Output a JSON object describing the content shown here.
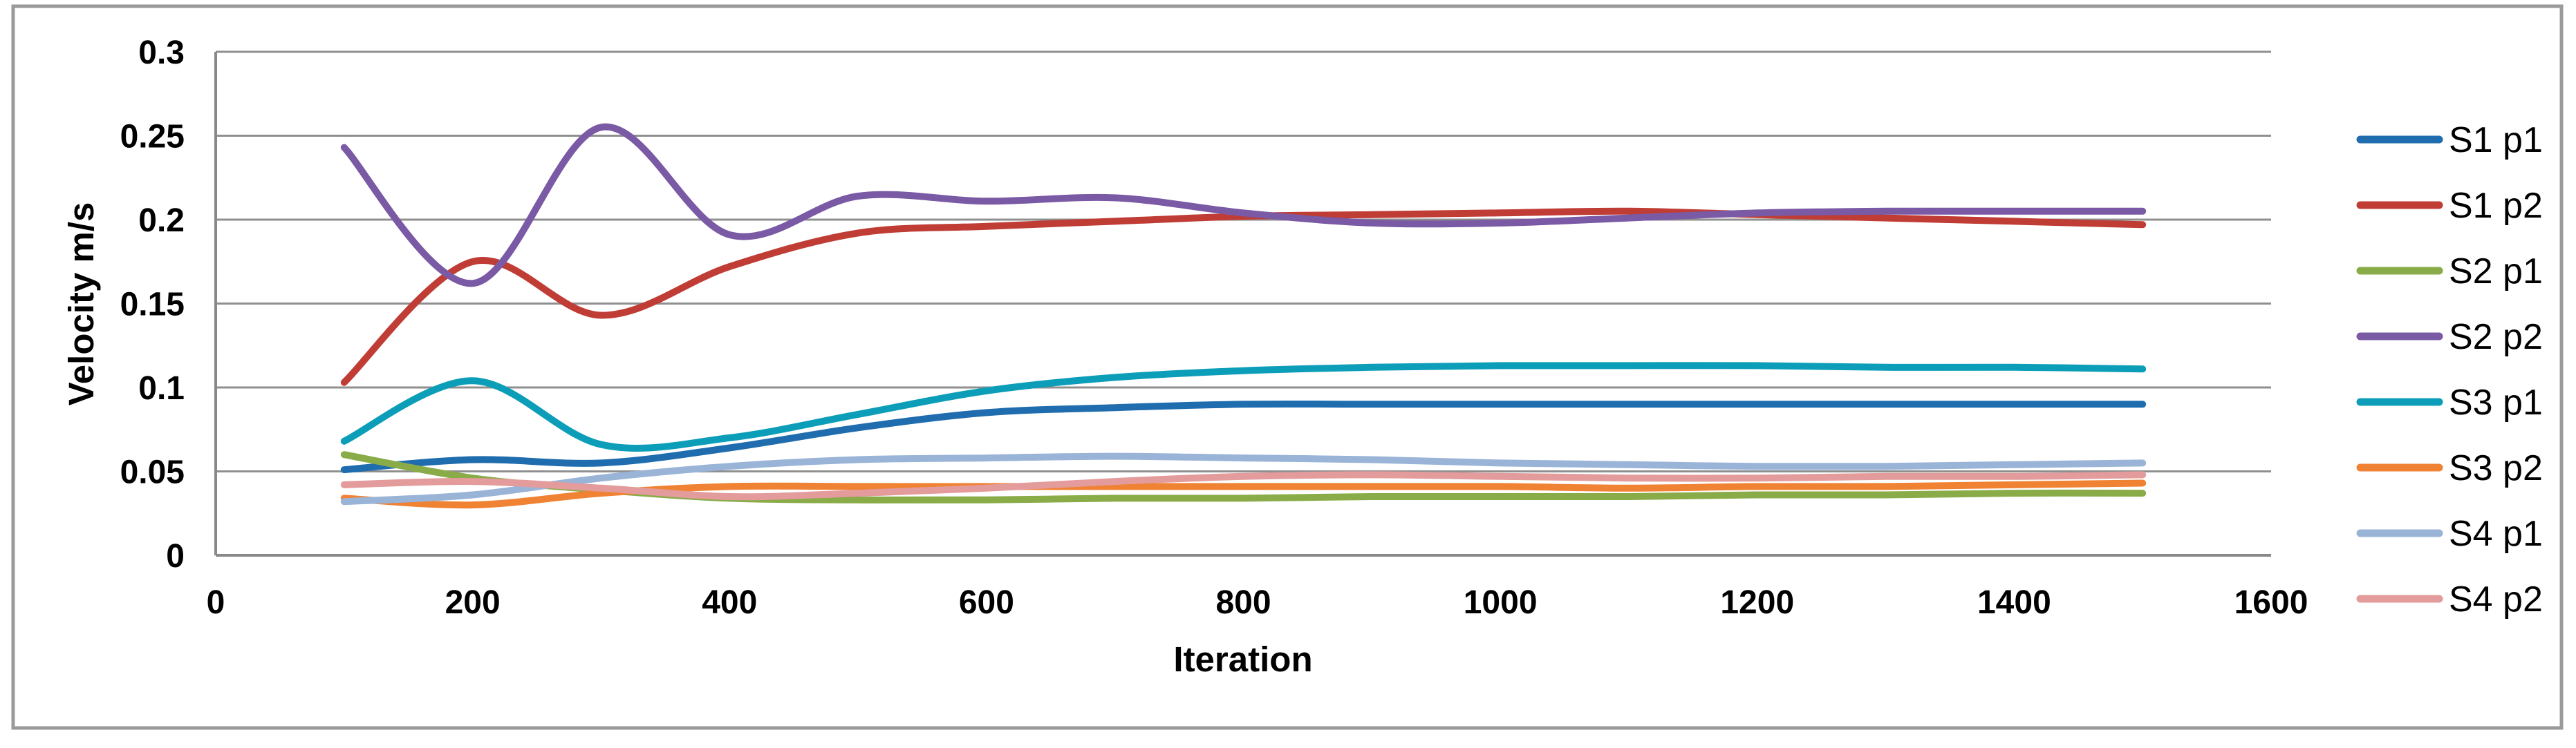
{
  "chart_data": {
    "type": "line",
    "title": "",
    "xlabel": "Iteration",
    "ylabel": "Velocity m/s",
    "xlim": [
      0,
      1600
    ],
    "ylim": [
      0,
      0.3
    ],
    "grid": true,
    "legend_position": "right",
    "smoothed_lines": true,
    "x": [
      100,
      200,
      300,
      400,
      500,
      600,
      700,
      800,
      900,
      1000,
      1100,
      1200,
      1300,
      1400,
      1500
    ],
    "x_ticks": [
      {
        "value": 0,
        "label": "0"
      },
      {
        "value": 200,
        "label": "200"
      },
      {
        "value": 400,
        "label": "400"
      },
      {
        "value": 600,
        "label": "600"
      },
      {
        "value": 800,
        "label": "800"
      },
      {
        "value": 1000,
        "label": "1000"
      },
      {
        "value": 1200,
        "label": "1200"
      },
      {
        "value": 1400,
        "label": "1400"
      },
      {
        "value": 1600,
        "label": "1600"
      }
    ],
    "y_ticks": [
      {
        "value": 0,
        "label": "0"
      },
      {
        "value": 0.05,
        "label": "0.05"
      },
      {
        "value": 0.1,
        "label": "0.1"
      },
      {
        "value": 0.15,
        "label": "0.15"
      },
      {
        "value": 0.2,
        "label": "0.2"
      },
      {
        "value": 0.25,
        "label": "0.25"
      },
      {
        "value": 0.3,
        "label": "0.3"
      }
    ],
    "series": [
      {
        "name": "S1 p1",
        "color": "#1F6DAE",
        "values": [
          0.051,
          0.057,
          0.055,
          0.064,
          0.076,
          0.085,
          0.088,
          0.09,
          0.09,
          0.09,
          0.09,
          0.09,
          0.09,
          0.09,
          0.09
        ]
      },
      {
        "name": "S1 p2",
        "color": "#C03D36",
        "values": [
          0.103,
          0.175,
          0.143,
          0.172,
          0.192,
          0.196,
          0.199,
          0.202,
          0.203,
          0.204,
          0.205,
          0.203,
          0.201,
          0.199,
          0.197
        ]
      },
      {
        "name": "S2 p1",
        "color": "#89AC49",
        "values": [
          0.06,
          0.046,
          0.039,
          0.034,
          0.033,
          0.033,
          0.034,
          0.034,
          0.035,
          0.035,
          0.035,
          0.036,
          0.036,
          0.037,
          0.037
        ]
      },
      {
        "name": "S2 p2",
        "color": "#7A59A5",
        "values": [
          0.243,
          0.162,
          0.255,
          0.191,
          0.214,
          0.211,
          0.213,
          0.204,
          0.198,
          0.198,
          0.201,
          0.204,
          0.205,
          0.205,
          0.205
        ]
      },
      {
        "name": "S3 p1",
        "color": "#0C9EB8",
        "values": [
          0.068,
          0.104,
          0.066,
          0.07,
          0.084,
          0.098,
          0.106,
          0.11,
          0.112,
          0.113,
          0.113,
          0.113,
          0.112,
          0.112,
          0.111
        ]
      },
      {
        "name": "S3 p2",
        "color": "#F08233",
        "values": [
          0.034,
          0.03,
          0.037,
          0.041,
          0.041,
          0.041,
          0.041,
          0.041,
          0.041,
          0.041,
          0.04,
          0.041,
          0.041,
          0.042,
          0.043
        ]
      },
      {
        "name": "S4 p1",
        "color": "#9AB4D8",
        "values": [
          0.032,
          0.036,
          0.046,
          0.053,
          0.057,
          0.058,
          0.059,
          0.058,
          0.057,
          0.055,
          0.054,
          0.053,
          0.053,
          0.054,
          0.055
        ]
      },
      {
        "name": "S4 p2",
        "color": "#E39B9B",
        "values": [
          0.042,
          0.044,
          0.04,
          0.035,
          0.037,
          0.04,
          0.044,
          0.047,
          0.048,
          0.047,
          0.046,
          0.046,
          0.047,
          0.047,
          0.048
        ]
      }
    ],
    "colors": {
      "gridline": "#8F8F8F",
      "axis_line": "#898989",
      "outer_border": "#9A9A9A",
      "text": "#000000",
      "background": "#FFFFFF"
    }
  }
}
